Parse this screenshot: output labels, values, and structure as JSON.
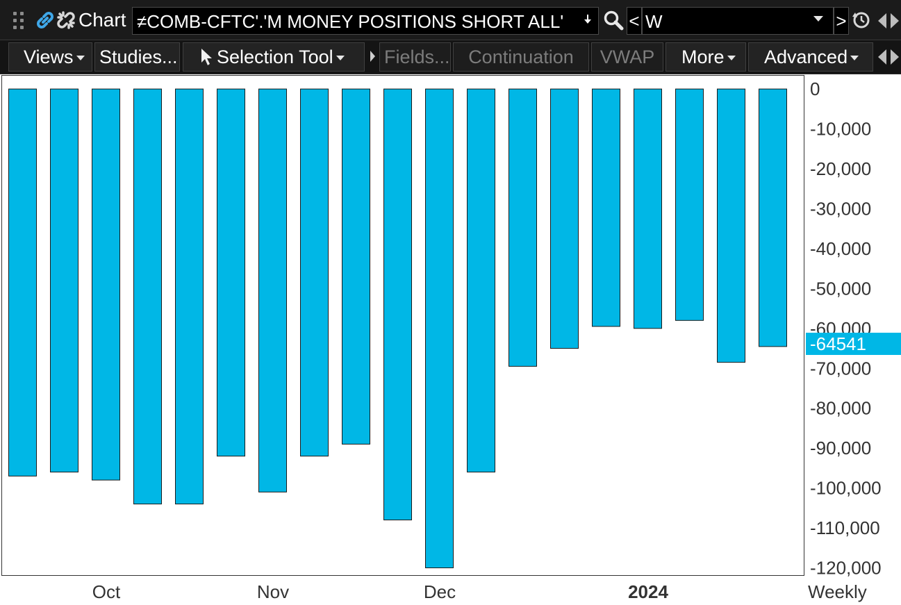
{
  "window": {
    "app_title": "Chart",
    "symbol": "≠COMB-CFTC'.'M MONEY POSITIONS SHORT ALL'",
    "prev_label": "<",
    "interval": "W",
    "next_label": ">",
    "icons": [
      "grip-icon",
      "link-icon",
      "unlink-icon",
      "symbol-dropdown-icon",
      "search-icon",
      "interval-dropdown-icon",
      "clock-icon",
      "scroll-arrows-icon"
    ]
  },
  "toolbar": {
    "views": "Views",
    "studies": "Studies...",
    "selection_tool": "Selection Tool",
    "fields": "Fields...",
    "continuation": "Continuation",
    "vwap": "VWAP",
    "more": "More",
    "advanced": "Advanced"
  },
  "colors": {
    "bar_fill": "#00b7e6",
    "bar_stroke": "#1a1a1a",
    "last_value_bg": "#00b7e6",
    "chrome_bg": "#1b1b1b"
  },
  "chart_data": {
    "type": "bar",
    "values": [
      -97000,
      -96000,
      -98000,
      -104000,
      -104000,
      -92000,
      -101000,
      -92000,
      -89000,
      -108000,
      -120000,
      -96000,
      -69500,
      -65000,
      -59500,
      -60000,
      -58000,
      -68500,
      -64541
    ],
    "ylim": [
      -122000,
      3500
    ],
    "y_ticks": [
      0,
      -10000,
      -20000,
      -30000,
      -40000,
      -50000,
      -60000,
      -70000,
      -80000,
      -90000,
      -100000,
      -110000,
      -120000
    ],
    "y_tick_labels": [
      "0",
      "-10,000",
      "-20,000",
      "-30,000",
      "-40,000",
      "-50,000",
      "-60,000",
      "-70,000",
      "-80,000",
      "-90,000",
      "-100,000",
      "-110,000",
      "-120,000"
    ],
    "x_labels": [
      {
        "text": "Oct",
        "bar_index": 2.35,
        "bold": false
      },
      {
        "text": "Nov",
        "bar_index": 6.35,
        "bold": false
      },
      {
        "text": "Dec",
        "bar_index": 10.35,
        "bold": false
      },
      {
        "text": "2024",
        "bar_index": 15.35,
        "bold": true
      }
    ],
    "last_value_label": "-64541",
    "periodicity_label": "Weekly",
    "grid": false
  }
}
